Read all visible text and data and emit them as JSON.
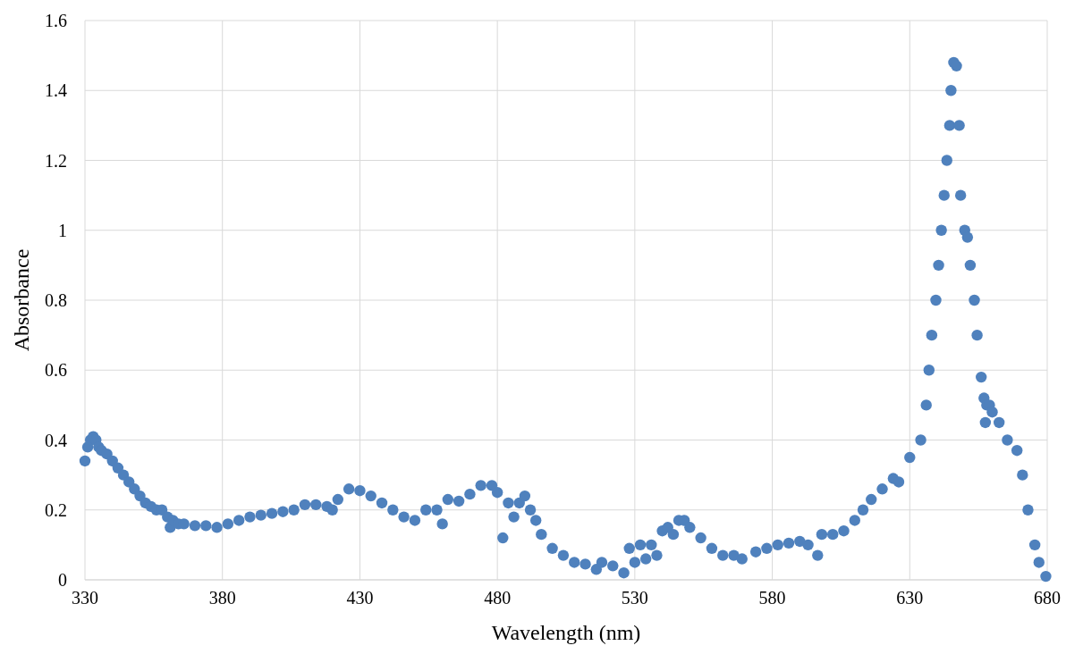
{
  "chart_data": {
    "type": "scatter",
    "xlabel": "Wavelength (nm)",
    "ylabel": "Absorbance",
    "xlim": [
      330,
      680
    ],
    "ylim": [
      0,
      1.6
    ],
    "xticks": [
      330,
      380,
      430,
      480,
      530,
      580,
      630,
      680
    ],
    "yticks": [
      0,
      {
        "value": 0.2,
        "label": "0.2"
      },
      {
        "value": 0.4,
        "label": "0.4"
      },
      {
        "value": 0.6,
        "label": "0.6"
      },
      {
        "value": 0.8,
        "label": "0.8"
      },
      1,
      {
        "value": 1.2,
        "label": "1.2"
      },
      {
        "value": 1.4,
        "label": "1.4"
      },
      {
        "value": 1.6,
        "label": "1.6"
      }
    ],
    "grid": true,
    "marker": "circle",
    "series": [
      {
        "color": "#4f81bd",
        "x": [
          330,
          331,
          332,
          333,
          334,
          335,
          336,
          338,
          340,
          342,
          344,
          346,
          348,
          350,
          352,
          354,
          356,
          358,
          360,
          361,
          362,
          364,
          366,
          370,
          374,
          378,
          382,
          386,
          390,
          394,
          398,
          402,
          406,
          410,
          414,
          418,
          420,
          422,
          426,
          430,
          434,
          438,
          442,
          446,
          450,
          454,
          458,
          460,
          462,
          466,
          470,
          474,
          478,
          480,
          482,
          484,
          486,
          488,
          490,
          492,
          494,
          496,
          500,
          504,
          508,
          512,
          516,
          518,
          522,
          526,
          528,
          530,
          532,
          534,
          536,
          538,
          540,
          542,
          544,
          546,
          548,
          550,
          554,
          558,
          562,
          566,
          569,
          574,
          578,
          582,
          586,
          590,
          593,
          596.5,
          598,
          602,
          606,
          610,
          613,
          616,
          620,
          624,
          626,
          630,
          634,
          636,
          637,
          638,
          639.5,
          640.5,
          641.5,
          642.5,
          643.5,
          644.5,
          645,
          646,
          647,
          648,
          648.5,
          650,
          651,
          652,
          653.5,
          654.5,
          656,
          657,
          657.5,
          658,
          659,
          660,
          662.5,
          665.5,
          669,
          671,
          673,
          675.5,
          677,
          679.5
        ],
        "values": [
          0.34,
          0.38,
          0.4,
          0.41,
          0.4,
          0.38,
          0.37,
          0.36,
          0.34,
          0.32,
          0.3,
          0.28,
          0.26,
          0.24,
          0.22,
          0.21,
          0.2,
          0.2,
          0.18,
          0.15,
          0.17,
          0.16,
          0.16,
          0.155,
          0.155,
          0.15,
          0.16,
          0.17,
          0.18,
          0.185,
          0.19,
          0.195,
          0.2,
          0.215,
          0.215,
          0.21,
          0.2,
          0.23,
          0.26,
          0.255,
          0.24,
          0.22,
          0.2,
          0.18,
          0.17,
          0.2,
          0.2,
          0.16,
          0.23,
          0.225,
          0.245,
          0.27,
          0.27,
          0.25,
          0.12,
          0.22,
          0.18,
          0.22,
          0.24,
          0.2,
          0.17,
          0.13,
          0.09,
          0.07,
          0.05,
          0.045,
          0.03,
          0.05,
          0.04,
          0.02,
          0.09,
          0.05,
          0.1,
          0.06,
          0.1,
          0.07,
          0.14,
          0.15,
          0.13,
          0.17,
          0.17,
          0.15,
          0.12,
          0.09,
          0.07,
          0.07,
          0.06,
          0.08,
          0.09,
          0.1,
          0.105,
          0.11,
          0.1,
          0.07,
          0.13,
          0.13,
          0.14,
          0.17,
          0.2,
          0.23,
          0.26,
          0.29,
          0.28,
          0.35,
          0.4,
          0.5,
          0.6,
          0.7,
          0.8,
          0.9,
          1.0,
          1.1,
          1.2,
          1.3,
          1.4,
          1.48,
          1.47,
          1.3,
          1.1,
          1.0,
          0.98,
          0.9,
          0.8,
          0.7,
          0.58,
          0.52,
          0.45,
          0.5,
          0.5,
          0.48,
          0.45,
          0.4,
          0.37,
          0.3,
          0.2,
          0.1,
          0.05,
          0.01
        ]
      }
    ]
  }
}
